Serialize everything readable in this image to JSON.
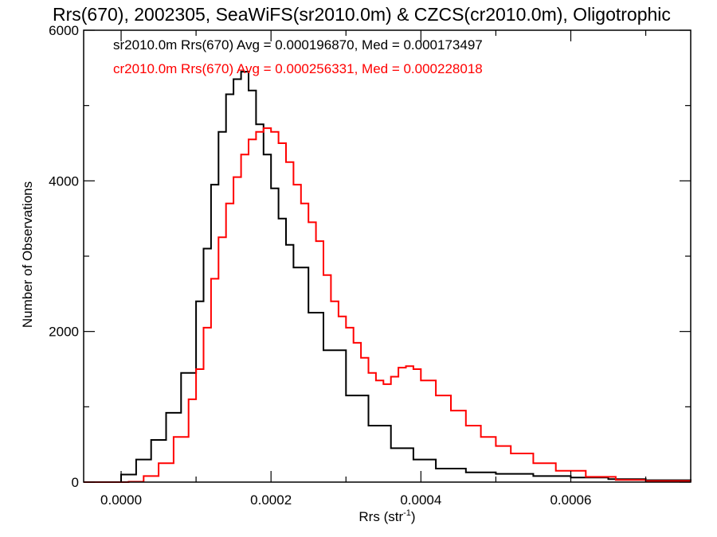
{
  "chart_data": {
    "type": "line",
    "title": "Rrs(670), 2002305, SeaWiFS(sr2010.0m) & CZCS(cr2010.0m), Oligotrophic",
    "xlabel": "Rrs (str",
    "xlabel_sup": "-1",
    "xlabel_close": ")",
    "ylabel": "Number of Observations",
    "xlim": [
      -5e-05,
      0.00076
    ],
    "ylim": [
      0,
      6000
    ],
    "xticks": [
      0.0,
      0.0002,
      0.0004,
      0.0006
    ],
    "xtick_labels": [
      "0.0000",
      "0.0002",
      "0.0004",
      "0.0006"
    ],
    "yticks": [
      0,
      2000,
      4000,
      6000
    ],
    "ytick_labels": [
      "0",
      "2000",
      "4000",
      "6000"
    ],
    "grid": false,
    "legend_position": "top-left",
    "series": [
      {
        "name": "sr2010.0m Rrs(670) Avg = 0.000196870, Med = 0.000173497",
        "color": "#000000",
        "step": true,
        "x": [
          -5e-05,
          0.0,
          2e-05,
          4e-05,
          6e-05,
          8e-05,
          0.0001,
          0.00011,
          0.00012,
          0.00013,
          0.00014,
          0.00015,
          0.00016,
          0.00017,
          0.00018,
          0.00019,
          0.0002,
          0.00021,
          0.00022,
          0.00023,
          0.00025,
          0.00027,
          0.0003,
          0.00033,
          0.00036,
          0.00039,
          0.00042,
          0.00046,
          0.0005,
          0.00055,
          0.0006,
          0.00065,
          0.0007,
          0.00076
        ],
        "y": [
          0,
          100,
          300,
          560,
          920,
          1450,
          2400,
          3100,
          3950,
          4650,
          5150,
          5350,
          5450,
          5200,
          4750,
          4350,
          3900,
          3500,
          3150,
          2850,
          2250,
          1750,
          1150,
          750,
          450,
          300,
          180,
          130,
          110,
          80,
          60,
          40,
          25,
          15
        ]
      },
      {
        "name": "cr2010.0m Rrs(670) Avg = 0.000256331, Med = 0.000228018",
        "color": "#ff0000",
        "step": true,
        "x": [
          -5e-05,
          1e-05,
          3e-05,
          5e-05,
          7e-05,
          9e-05,
          0.0001,
          0.00011,
          0.00012,
          0.00013,
          0.00014,
          0.00015,
          0.00016,
          0.00017,
          0.00018,
          0.00019,
          0.0002,
          0.00021,
          0.00022,
          0.00023,
          0.00024,
          0.00025,
          0.00026,
          0.00027,
          0.00028,
          0.00029,
          0.0003,
          0.00031,
          0.00032,
          0.00033,
          0.00034,
          0.00035,
          0.00036,
          0.00037,
          0.00038,
          0.00039,
          0.0004,
          0.00042,
          0.00044,
          0.00046,
          0.00048,
          0.0005,
          0.00052,
          0.00055,
          0.00058,
          0.00062,
          0.00066,
          0.0007,
          0.00076
        ],
        "y": [
          0,
          5,
          80,
          250,
          600,
          1100,
          1500,
          2050,
          2700,
          3250,
          3700,
          4050,
          4350,
          4550,
          4650,
          4700,
          4650,
          4500,
          4250,
          3950,
          3700,
          3450,
          3200,
          2750,
          2400,
          2200,
          2050,
          1850,
          1650,
          1450,
          1350,
          1300,
          1400,
          1520,
          1540,
          1500,
          1350,
          1150,
          950,
          750,
          600,
          480,
          380,
          250,
          150,
          70,
          30,
          15,
          5
        ]
      }
    ]
  }
}
